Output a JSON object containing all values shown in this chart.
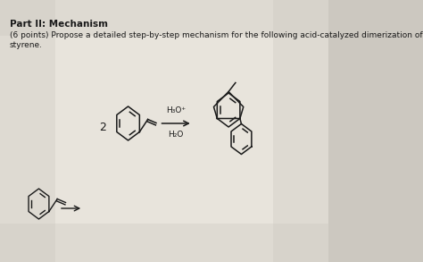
{
  "bg_color": "#ccc8c0",
  "center_bg": "#e8e4dc",
  "title_bold": "Part II: Mechanism",
  "subtitle_line1": "(6 points) Propose a detailed step-by-step mechanism for the following acid-catalyzed dimerization of",
  "subtitle_line2": "styrene.",
  "reagent_top": "H₃O⁺",
  "reagent_bottom": "H₂O",
  "coeff": "2",
  "title_fontsize": 7.5,
  "subtitle_fontsize": 6.5,
  "text_color": "#1a1a1a",
  "fig_width": 4.74,
  "fig_height": 2.93,
  "dpi": 100
}
